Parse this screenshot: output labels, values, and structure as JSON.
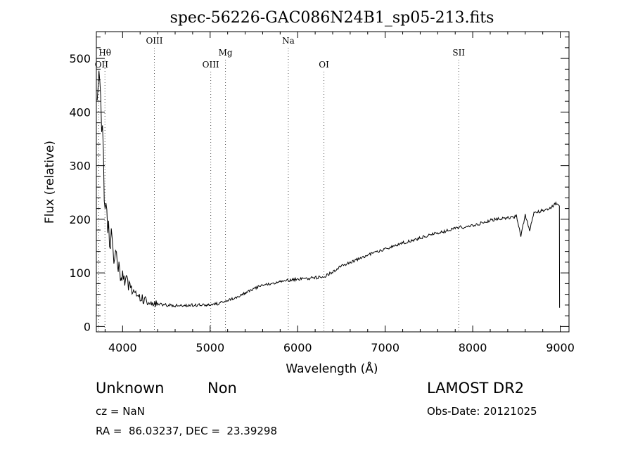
{
  "chart_data": {
    "type": "line",
    "title": "spec-56226-GAC086N24B1_sp05-213.fits",
    "xlabel": "Wavelength (Å)",
    "ylabel": "Flux (relative)",
    "xlim": [
      3700,
      9100
    ],
    "ylim": [
      -10,
      550
    ],
    "xticks": [
      4000,
      5000,
      6000,
      7000,
      8000,
      9000
    ],
    "yticks": [
      0,
      100,
      200,
      300,
      400,
      500
    ],
    "grid": false,
    "lines": [
      {
        "label": "OII",
        "x": 3727,
        "row": "low"
      },
      {
        "label": "Hθ",
        "x": 3798,
        "row": "mid"
      },
      {
        "label": "OIII",
        "x": 4363,
        "row": "high"
      },
      {
        "label": "OIII",
        "x": 5007,
        "row": "low"
      },
      {
        "label": "Mg",
        "x": 5175,
        "row": "mid"
      },
      {
        "label": "Na",
        "x": 5893,
        "row": "high"
      },
      {
        "label": "OI",
        "x": 6300,
        "row": "low"
      },
      {
        "label": "SII",
        "x": 7840,
        "row": "mid"
      }
    ],
    "series": [
      {
        "x": [
          3710,
          3730,
          3750,
          3770,
          3790,
          3810,
          3830,
          3850,
          3870,
          3890,
          3910,
          3930,
          3950,
          3975,
          4000,
          4025,
          4050,
          4075,
          4100,
          4150,
          4200,
          4250,
          4300,
          4350,
          4400,
          4500,
          4600,
          4700,
          4800,
          4900,
          5000,
          5100,
          5200,
          5300,
          5400,
          5500,
          5600,
          5700,
          5800,
          5900,
          6000,
          6100,
          6200,
          6300,
          6400,
          6500,
          6600,
          6700,
          6800,
          6900,
          7000,
          7100,
          7200,
          7300,
          7400,
          7500,
          7600,
          7700,
          7800,
          7850,
          7900,
          8000,
          8100,
          8200,
          8300,
          8400,
          8500,
          8550,
          8600,
          8650,
          8700,
          8800,
          8900,
          8950,
          8990
        ],
        "y": [
          480,
          420,
          380,
          330,
          270,
          240,
          190,
          175,
          160,
          140,
          130,
          120,
          110,
          100,
          95,
          90,
          82,
          75,
          70,
          62,
          55,
          50,
          46,
          43,
          42,
          40,
          39,
          39,
          40,
          40,
          41,
          43,
          48,
          55,
          63,
          70,
          77,
          80,
          84,
          86,
          88,
          89,
          91,
          92,
          102,
          113,
          120,
          126,
          133,
          139,
          145,
          150,
          156,
          160,
          165,
          170,
          175,
          178,
          183,
          186,
          183,
          188,
          193,
          198,
          201,
          203,
          205,
          170,
          208,
          180,
          211,
          217,
          222,
          230,
          225
        ]
      }
    ]
  },
  "info": {
    "class_label": "Unknown",
    "subclass_label": "Non",
    "survey": "LAMOST DR2",
    "cz": "cz = NaN",
    "obs_date": "Obs-Date: 20121025",
    "radec": "RA =  86.03237, DEC =  23.39298"
  }
}
